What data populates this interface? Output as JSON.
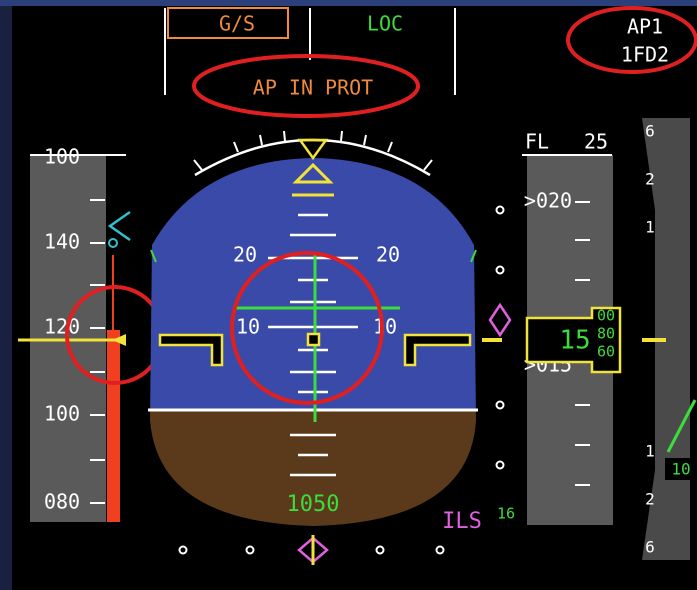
{
  "fma": {
    "col1": "G/S",
    "col2": "LOC",
    "col2_warning": "AP IN PROT",
    "ap": "AP1",
    "fd": "1FD2"
  },
  "speed_tape": {
    "labels": [
      "100",
      "140",
      "120",
      "100",
      "080"
    ]
  },
  "attitude": {
    "pitch_labels": [
      "20",
      "20",
      "10",
      "10"
    ],
    "radio_altitude": "1050"
  },
  "altitude_tape": {
    "fl_label": "FL",
    "fl_value": "25",
    "labels": [
      ">020",
      ">015"
    ],
    "window_value": "15",
    "window_digits": [
      "00",
      "80",
      "60"
    ]
  },
  "ils": {
    "label": "ILS",
    "course": "16"
  },
  "vertical_speed": {
    "labels": [
      "6",
      "2",
      "1",
      "1",
      "2",
      "6"
    ],
    "value": "10"
  }
}
